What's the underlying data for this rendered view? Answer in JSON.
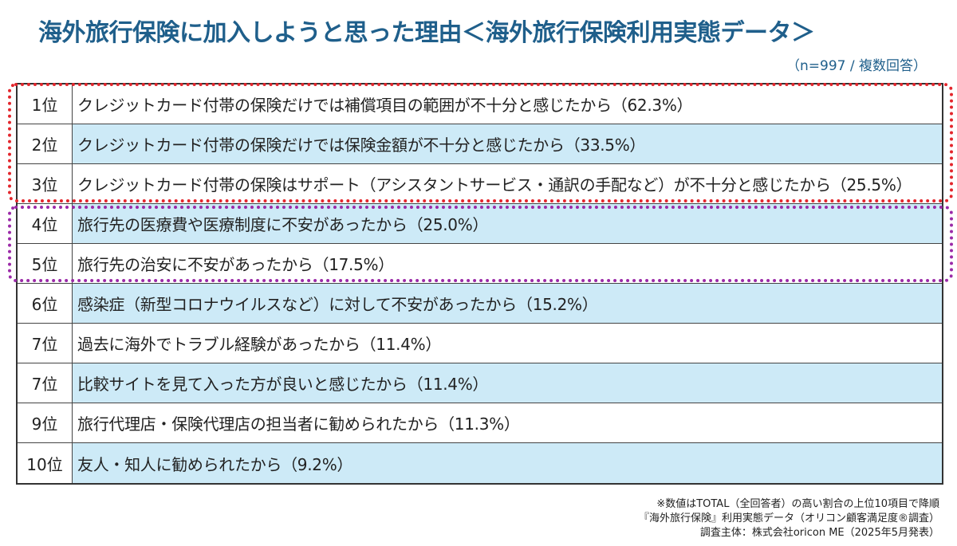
{
  "header": {
    "title": "海外旅行保険に加入しようと思った理由＜海外旅行保険利用実態データ＞",
    "sample": "（n=997 / 複数回答）"
  },
  "chart_data": {
    "type": "table",
    "title": "海外旅行保険に加入しようと思った理由",
    "rows": [
      {
        "rank": "1位",
        "text": "クレジットカード付帯の保険だけでは補償項目の範囲が不十分と感じたから（62.3%）",
        "value": 62.3,
        "highlight": "red"
      },
      {
        "rank": "2位",
        "text": "クレジットカード付帯の保険だけでは保険金額が不十分と感じたから（33.5%）",
        "value": 33.5,
        "highlight": "red"
      },
      {
        "rank": "3位",
        "text": "クレジットカード付帯の保険はサポート（アシスタントサービス・通訳の手配など）が不十分と感じたから（25.5%）",
        "value": 25.5,
        "highlight": "red"
      },
      {
        "rank": "4位",
        "text": "旅行先の医療費や医療制度に不安があったから（25.0%）",
        "value": 25.0,
        "highlight": "purple"
      },
      {
        "rank": "5位",
        "text": "旅行先の治安に不安があったから（17.5%）",
        "value": 17.5,
        "highlight": "purple"
      },
      {
        "rank": "6位",
        "text": "感染症（新型コロナウイルスなど）に対して不安があったから（15.2%）",
        "value": 15.2,
        "highlight": ""
      },
      {
        "rank": "7位",
        "text": "過去に海外でトラブル経験があったから（11.4%）",
        "value": 11.4,
        "highlight": ""
      },
      {
        "rank": "7位",
        "text": "比較サイトを見て入った方が良いと感じたから（11.4%）",
        "value": 11.4,
        "highlight": ""
      },
      {
        "rank": "9位",
        "text": "旅行代理店・保険代理店の担当者に勧められたから（11.3%）",
        "value": 11.3,
        "highlight": ""
      },
      {
        "rank": "10位",
        "text": "友人・知人に勧められたから（9.2%）",
        "value": 9.2,
        "highlight": ""
      }
    ]
  },
  "footer": {
    "note1": "※数値はTOTAL（全回答者）の高い割合の上位10項目で降順",
    "note2": "『海外旅行保険』利用実態データ（オリコン顧客満足度®調査）",
    "note3": "調査主体：株式会社oricon ME（2025年5月発表）"
  }
}
